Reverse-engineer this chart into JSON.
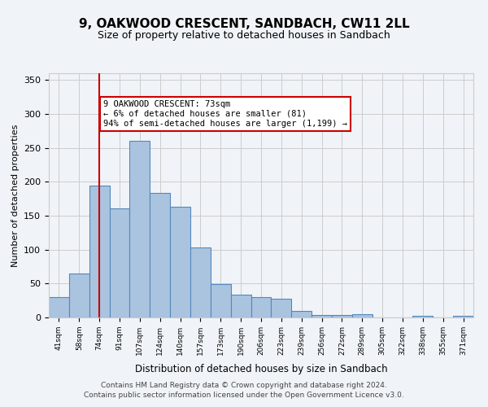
{
  "title": "9, OAKWOOD CRESCENT, SANDBACH, CW11 2LL",
  "subtitle": "Size of property relative to detached houses in Sandbach",
  "xlabel": "Distribution of detached houses by size in Sandbach",
  "ylabel": "Number of detached properties",
  "footer_line1": "Contains HM Land Registry data © Crown copyright and database right 2024.",
  "footer_line2": "Contains public sector information licensed under the Open Government Licence v3.0.",
  "bin_labels": [
    "41sqm",
    "58sqm",
    "74sqm",
    "91sqm",
    "107sqm",
    "124sqm",
    "140sqm",
    "157sqm",
    "173sqm",
    "190sqm",
    "206sqm",
    "223sqm",
    "239sqm",
    "256sqm",
    "272sqm",
    "289sqm",
    "305sqm",
    "322sqm",
    "338sqm",
    "355sqm",
    "371sqm"
  ],
  "bar_values": [
    30,
    65,
    194,
    161,
    260,
    184,
    163,
    103,
    49,
    34,
    30,
    28,
    10,
    4,
    4,
    5,
    0,
    0,
    2,
    0,
    2
  ],
  "bar_color": "#aac4e0",
  "bar_edge_color": "#5588bb",
  "property_line_x": 2,
  "property_line_color": "#cc0000",
  "annotation_text": "9 OAKWOOD CRESCENT: 73sqm\n← 6% of detached houses are smaller (81)\n94% of semi-detached houses are larger (1,199) →",
  "annotation_box_color": "#ffffff",
  "annotation_box_edge_color": "#cc0000",
  "ylim": [
    0,
    360
  ],
  "yticks": [
    0,
    50,
    100,
    150,
    200,
    250,
    300,
    350
  ],
  "background_color": "#f0f4f8",
  "plot_bg_color": "#f0f4f8",
  "grid_color": "#cccccc"
}
